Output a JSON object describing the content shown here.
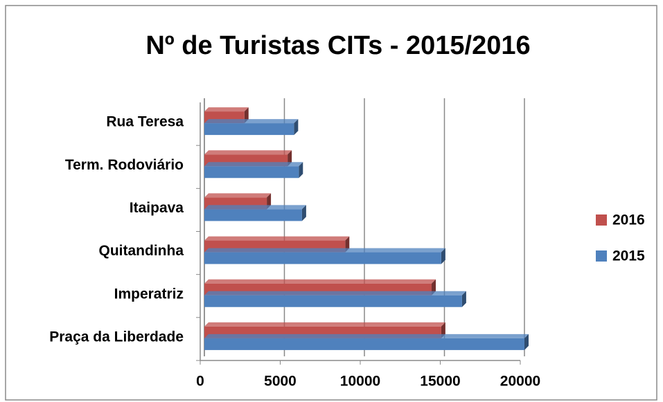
{
  "chart_data": {
    "type": "bar",
    "orientation": "horizontal",
    "title": "Nº de Turistas CITs - 2015/2016",
    "categories": [
      "Praça da Liberdade",
      "Imperatriz",
      "Quitandinha",
      "Itaipava",
      "Term. Rodoviário",
      "Rua Teresa"
    ],
    "series": [
      {
        "name": "2016",
        "color": "#c0504d",
        "values": [
          14800,
          14200,
          8800,
          3900,
          5200,
          2500
        ]
      },
      {
        "name": "2015",
        "color": "#4f81bd",
        "values": [
          20000,
          16100,
          14800,
          6100,
          5900,
          5600
        ]
      }
    ],
    "xlim": [
      0,
      20000
    ],
    "xticks": [
      0,
      5000,
      10000,
      15000,
      20000
    ],
    "grid": true,
    "legend": "right"
  }
}
